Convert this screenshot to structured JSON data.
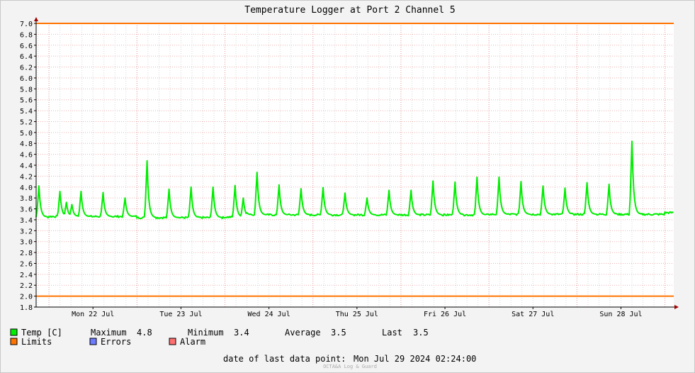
{
  "chart_data": {
    "type": "line",
    "title": "Temperature Logger at Port 2 Channel 5",
    "xlabel": "",
    "ylabel": "",
    "ylim": [
      1.8,
      7.0
    ],
    "yticks": [
      "7.0",
      "6.8",
      "6.6",
      "6.4",
      "6.2",
      "6.0",
      "5.8",
      "5.6",
      "5.4",
      "5.2",
      "5.0",
      "4.8",
      "4.6",
      "4.4",
      "4.2",
      "4.0",
      "3.8",
      "3.6",
      "3.4",
      "3.2",
      "3.0",
      "2.8",
      "2.6",
      "2.4",
      "2.2",
      "2.0",
      "1.8"
    ],
    "xlim": [
      "2024-07-21 20:30",
      "2024-07-29 02:24"
    ],
    "x_day_labels": [
      {
        "label": "Mon 22 Jul",
        "date": "2024-07-22"
      },
      {
        "label": "Tue 23 Jul",
        "date": "2024-07-23"
      },
      {
        "label": "Wed 24 Jul",
        "date": "2024-07-24"
      },
      {
        "label": "Thu 25 Jul",
        "date": "2024-07-25"
      },
      {
        "label": "Fri 26 Jul",
        "date": "2024-07-26"
      },
      {
        "label": "Sat 27 Jul",
        "date": "2024-07-27"
      },
      {
        "label": "Sun 28 Jul",
        "date": "2024-07-28"
      }
    ],
    "grid": true,
    "legend_position": "bottom-left",
    "limits": {
      "upper": 7.0,
      "lower": 2.0
    },
    "series": [
      {
        "name": "Temp [C]",
        "color": "#00ee00",
        "baselines": [
          {
            "from": "2024-07-21 20:30",
            "value": 3.45
          },
          {
            "from": "2024-07-22 00:00",
            "value": 3.46
          },
          {
            "from": "2024-07-23 00:00",
            "value": 3.44
          },
          {
            "from": "2024-07-24 00:00",
            "value": 3.45
          },
          {
            "from": "2024-07-24 06:00",
            "value": 3.49
          },
          {
            "from": "2024-07-26 00:00",
            "value": 3.49
          },
          {
            "from": "2024-07-27 00:00",
            "value": 3.5
          },
          {
            "from": "2024-07-29 00:00",
            "value": 3.53
          }
        ],
        "peaks": [
          {
            "x": "2024-07-21 21:15",
            "y": 4.02
          },
          {
            "x": "2024-07-22 03:00",
            "y": 3.92
          },
          {
            "x": "2024-07-22 04:45",
            "y": 3.72
          },
          {
            "x": "2024-07-22 06:15",
            "y": 3.68
          },
          {
            "x": "2024-07-22 08:45",
            "y": 3.92
          },
          {
            "x": "2024-07-22 14:45",
            "y": 3.9
          },
          {
            "x": "2024-07-22 20:45",
            "y": 3.8
          },
          {
            "x": "2024-07-23 02:45",
            "y": 4.48
          },
          {
            "x": "2024-07-23 08:45",
            "y": 3.96
          },
          {
            "x": "2024-07-23 14:45",
            "y": 4.0
          },
          {
            "x": "2024-07-23 20:45",
            "y": 4.0
          },
          {
            "x": "2024-07-24 02:45",
            "y": 4.03
          },
          {
            "x": "2024-07-24 05:00",
            "y": 3.8
          },
          {
            "x": "2024-07-24 08:45",
            "y": 4.27
          },
          {
            "x": "2024-07-24 14:45",
            "y": 4.04
          },
          {
            "x": "2024-07-24 20:45",
            "y": 3.97
          },
          {
            "x": "2024-07-25 02:45",
            "y": 3.99
          },
          {
            "x": "2024-07-25 08:45",
            "y": 3.89
          },
          {
            "x": "2024-07-25 14:45",
            "y": 3.8
          },
          {
            "x": "2024-07-25 20:45",
            "y": 3.94
          },
          {
            "x": "2024-07-26 02:45",
            "y": 3.94
          },
          {
            "x": "2024-07-26 08:45",
            "y": 4.11
          },
          {
            "x": "2024-07-26 14:45",
            "y": 4.09
          },
          {
            "x": "2024-07-26 20:45",
            "y": 4.18
          },
          {
            "x": "2024-07-27 02:45",
            "y": 4.18
          },
          {
            "x": "2024-07-27 08:45",
            "y": 4.1
          },
          {
            "x": "2024-07-27 14:45",
            "y": 4.02
          },
          {
            "x": "2024-07-27 20:45",
            "y": 3.98
          },
          {
            "x": "2024-07-28 02:45",
            "y": 4.08
          },
          {
            "x": "2024-07-28 08:45",
            "y": 4.05
          },
          {
            "x": "2024-07-28 15:00",
            "y": 4.84
          }
        ]
      }
    ]
  },
  "legend": {
    "temp_label": "Temp [C]",
    "limits_label": "Limits",
    "errors_label": "Errors",
    "alarm_label": "Alarm",
    "temp_color": "#00ee00",
    "limits_color": "#ff7300",
    "errors_color": "#6d7cff",
    "alarm_color": "#ff6f6f"
  },
  "stats": {
    "max_label": "Maximum",
    "max_value": "4.8",
    "min_label": "Minimum",
    "min_value": "3.4",
    "avg_label": "Average",
    "avg_value": "3.5",
    "last_label": "Last",
    "last_value": "3.5"
  },
  "footer": {
    "last_point_label": "date of last data point:",
    "last_point_value": "Mon Jul 29 2024 02:24:00",
    "watermark": "OCTA&A Log & Guard"
  }
}
